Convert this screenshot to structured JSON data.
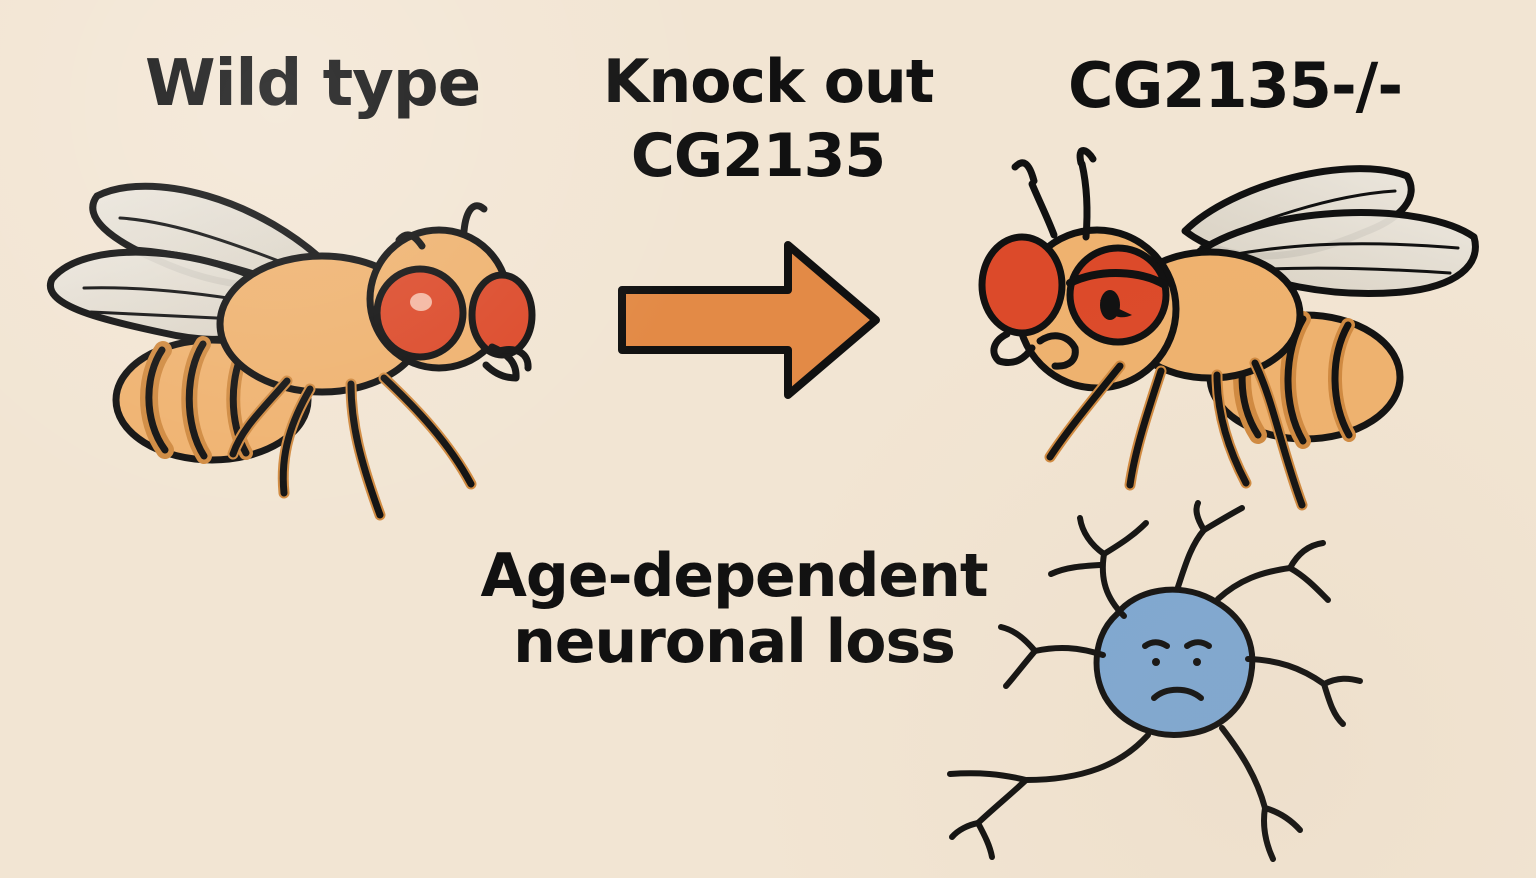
{
  "labels": {
    "wild_type": "Wild type",
    "knockout_line1": "Knock out",
    "knockout_line2": "CG2135",
    "mutant": "CG2135-/-",
    "loss_line1": "Age-dependent",
    "loss_line2": "neuronal loss"
  },
  "colors": {
    "background": "#f2e5d3",
    "fly_body": "#efb26f",
    "fly_stripes": "#d08a40",
    "eye": "#dc4a2a",
    "wing": "#ddd6c9",
    "arrow": "#e38a46",
    "neuron": "#7ea8d4",
    "outline": "#111111"
  },
  "icons": {
    "wild_fly": "happy-fly-icon",
    "mutant_fly": "sad-fly-icon",
    "arrow": "right-arrow-icon",
    "neuron": "sad-neuron-icon"
  }
}
